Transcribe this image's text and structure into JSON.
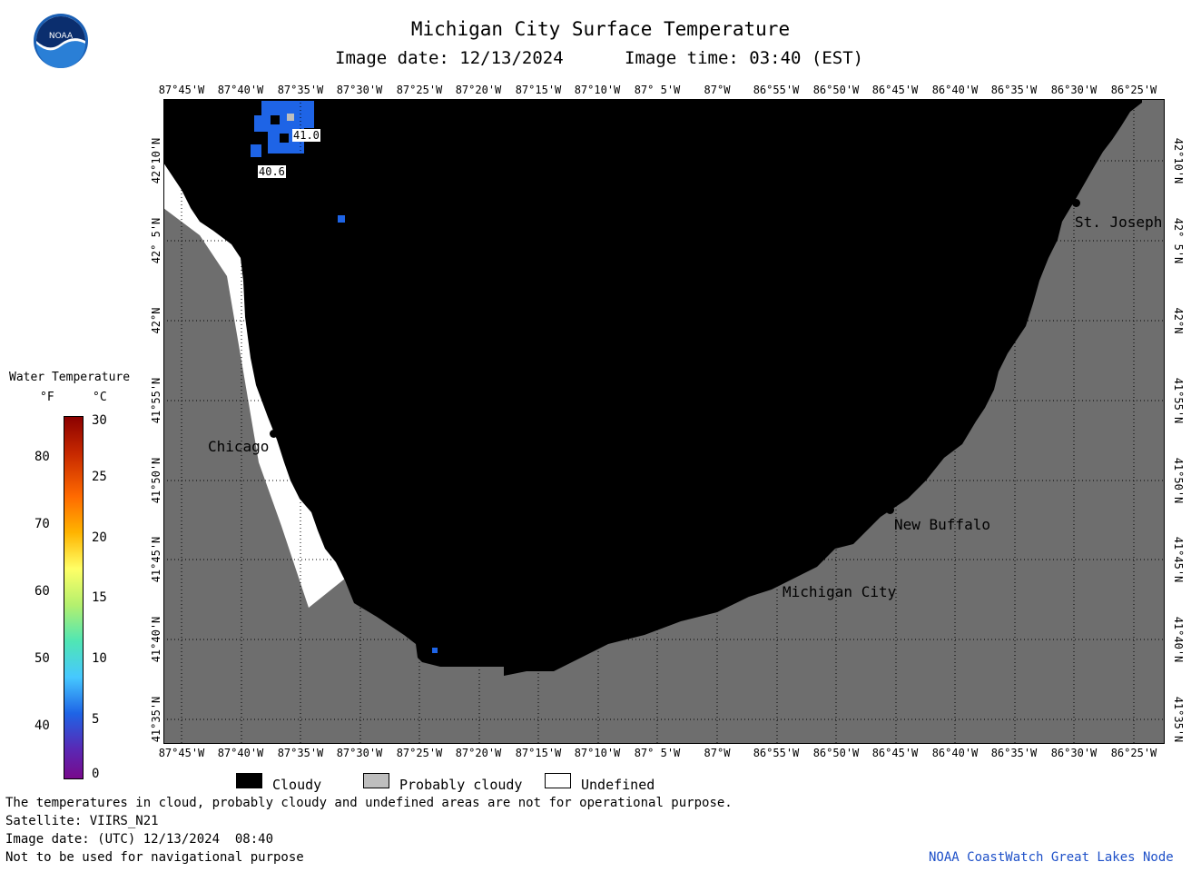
{
  "header": {
    "title": "Michigan City Surface Temperature",
    "date_line": "Image date: 12/13/2024",
    "time_line": "Image time: 03:40 (EST)"
  },
  "logo": {
    "text": "NOAA",
    "icon": "noaa-logo-icon"
  },
  "longitude_ticks": [
    "87°45'W",
    "87°40'W",
    "87°35'W",
    "87°30'W",
    "87°25'W",
    "87°20'W",
    "87°15'W",
    "87°10'W",
    "87° 5'W",
    "87°W",
    "86°55'W",
    "86°50'W",
    "86°45'W",
    "86°40'W",
    "86°35'W",
    "86°30'W",
    "86°25'W"
  ],
  "latitude_ticks": [
    "42°10'N",
    "42° 5'N",
    "42°N",
    "41°55'N",
    "41°50'N",
    "41°45'N",
    "41°40'N",
    "41°35'N"
  ],
  "cities": [
    {
      "name": "Chicago",
      "lon": -87.63,
      "lat": 41.88
    },
    {
      "name": "St. Joseph",
      "lon": -86.49,
      "lat": 42.11
    },
    {
      "name": "New Buffalo",
      "lon": -86.74,
      "lat": 41.79
    },
    {
      "name": "Michigan City",
      "lon": -86.91,
      "lat": 41.71
    }
  ],
  "temperature_labels": [
    {
      "value": "41.0",
      "lon": -87.585,
      "lat": 42.185
    },
    {
      "value": "40.6",
      "lon": -87.61,
      "lat": 42.155
    }
  ],
  "colorbar": {
    "title": "Water Temperature",
    "unit_f": "°F",
    "unit_c": "°C",
    "f_ticks": [
      "80",
      "70",
      "60",
      "50",
      "40"
    ],
    "c_ticks": [
      "30",
      "25",
      "20",
      "15",
      "10",
      "5",
      "0"
    ]
  },
  "legend": [
    {
      "label": "Cloudy",
      "color": "#000000"
    },
    {
      "label": "Probably cloudy",
      "color": "#bebebe"
    },
    {
      "label": "Undefined",
      "color": "#ffffff"
    }
  ],
  "footer": {
    "disclaimer": "The temperatures in cloud, probably cloudy and undefined areas are not for operational purpose.",
    "satellite": "Satellite: VIIRS_N21",
    "utc_date": "Image date: (UTC) 12/13/2024  08:40",
    "nav_note": "Not to be used for navigational purpose",
    "credit": "NOAA CoastWatch Great Lakes Node"
  },
  "colors": {
    "land": "#6e6e6e",
    "cloud": "#000000",
    "water_blue": "#1e64e6",
    "credit": "#1e50c8"
  }
}
